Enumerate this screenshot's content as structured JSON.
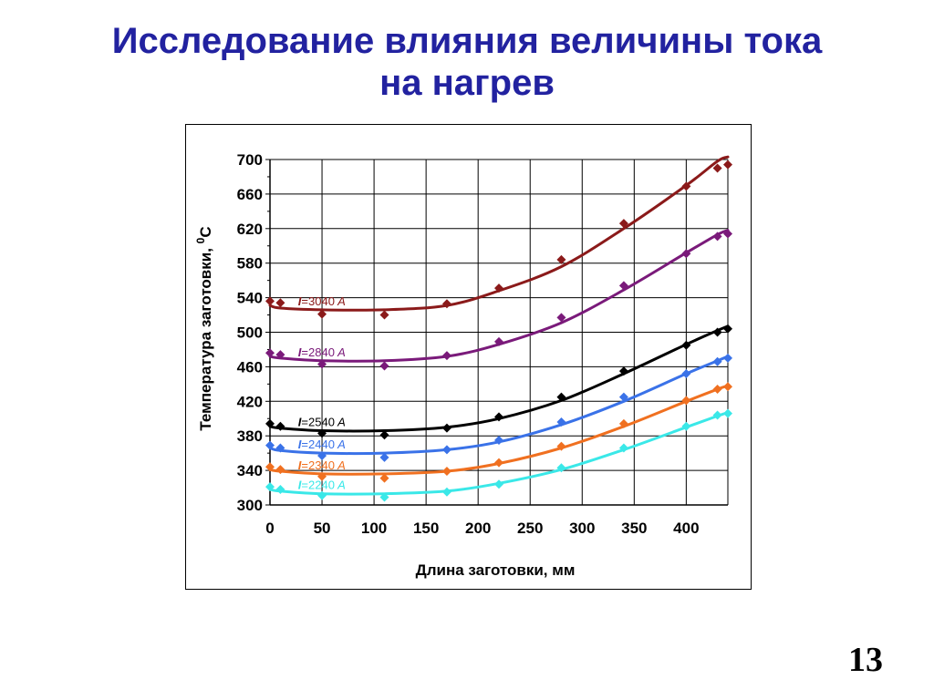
{
  "slide": {
    "title_line1": "Исследование влияния величины тока",
    "title_line2": "на нагрев",
    "page_number": "13"
  },
  "chart_data": {
    "type": "line",
    "title": "",
    "xlabel": "Длина заготовки, мм",
    "ylabel": "Температура заготовки, ",
    "ylabel_sup": "0",
    "ylabel_unit": "С",
    "xlim": [
      0,
      440
    ],
    "ylim": [
      300,
      700
    ],
    "xticks": [
      "0",
      "50",
      "100",
      "150",
      "200",
      "250",
      "300",
      "350",
      "400"
    ],
    "yticks": [
      "300",
      "340",
      "380",
      "420",
      "460",
      "500",
      "540",
      "580",
      "620",
      "660",
      "700"
    ],
    "grid": true,
    "series": [
      {
        "name": "I=3040 A",
        "label_prefix": "I",
        "label_value": "=3040",
        "label_unit": " A",
        "color": "#8b1a1a",
        "x": [
          0,
          10,
          50,
          110,
          170,
          220,
          280,
          340,
          400,
          430,
          440
        ],
        "y": [
          536,
          534,
          521,
          520,
          533,
          551,
          584,
          626,
          669,
          690,
          694
        ],
        "fit": [
          531,
          528,
          526,
          526,
          531,
          548,
          576,
          620,
          670,
          698,
          703
        ]
      },
      {
        "name": "I=2840 A",
        "label_prefix": "I",
        "label_value": "=2840",
        "label_unit": " A",
        "color": "#7a1a7a",
        "x": [
          0,
          10,
          50,
          110,
          170,
          220,
          280,
          340,
          400,
          430,
          440
        ],
        "y": [
          476,
          474,
          463,
          461,
          473,
          489,
          517,
          554,
          591,
          611,
          614
        ],
        "fit": [
          472,
          470,
          467,
          467,
          472,
          486,
          511,
          549,
          592,
          613,
          618
        ]
      },
      {
        "name": "I=2540 A",
        "label_prefix": "I",
        "label_value": "=2540",
        "label_unit": " A",
        "color": "#000000",
        "x": [
          0,
          10,
          50,
          110,
          170,
          220,
          280,
          340,
          400,
          430,
          440
        ],
        "y": [
          394,
          391,
          383,
          381,
          389,
          402,
          425,
          455,
          485,
          500,
          504
        ],
        "fit": [
          391,
          389,
          386,
          386,
          390,
          400,
          421,
          452,
          486,
          502,
          507
        ]
      },
      {
        "name": "I=2440 A",
        "label_prefix": "I",
        "label_value": "=2440",
        "label_unit": " A",
        "color": "#3a72e8",
        "x": [
          0,
          10,
          50,
          110,
          170,
          220,
          280,
          340,
          400,
          430,
          440
        ],
        "y": [
          369,
          366,
          357,
          355,
          364,
          375,
          396,
          425,
          452,
          466,
          470
        ],
        "fit": [
          366,
          363,
          360,
          360,
          364,
          373,
          393,
          420,
          452,
          467,
          472
        ]
      },
      {
        "name": "I=2340 A",
        "label_prefix": "I",
        "label_value": "=2340",
        "label_unit": " A",
        "color": "#f07020",
        "x": [
          0,
          10,
          50,
          110,
          170,
          220,
          280,
          340,
          400,
          430,
          440
        ],
        "y": [
          344,
          341,
          333,
          331,
          339,
          349,
          368,
          394,
          421,
          434,
          437
        ],
        "fit": [
          341,
          339,
          336,
          336,
          339,
          348,
          366,
          391,
          420,
          434,
          438
        ]
      },
      {
        "name": "I=2240 A",
        "label_prefix": "I",
        "label_value": "=2240",
        "label_unit": " A",
        "color": "#3ae8e8",
        "x": [
          0,
          10,
          50,
          110,
          170,
          220,
          280,
          340,
          400,
          430,
          440
        ],
        "y": [
          321,
          318,
          311,
          309,
          315,
          324,
          343,
          366,
          391,
          404,
          406
        ],
        "fit": [
          318,
          316,
          313,
          313,
          316,
          325,
          341,
          364,
          390,
          403,
          407
        ]
      }
    ]
  }
}
